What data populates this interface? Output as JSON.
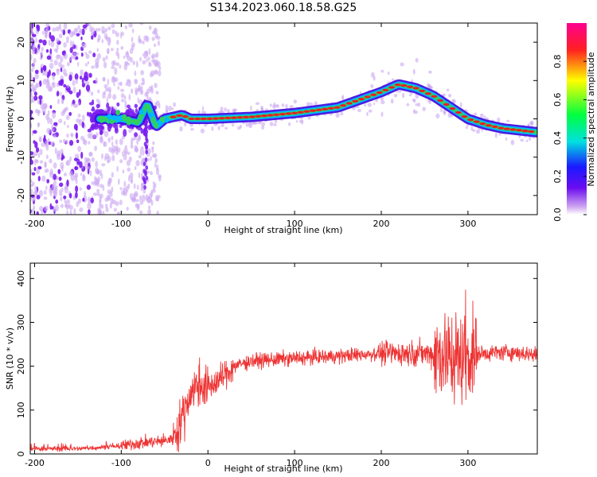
{
  "figure": {
    "title": "S134.2023.060.18.58.G25"
  },
  "chart_data": [
    {
      "type": "heatmap",
      "xlabel": "Height of straight line (km)",
      "ylabel": "Frequency (Hz)",
      "xlim": [
        -205,
        380
      ],
      "ylim": [
        -25,
        25
      ],
      "x_ticks": [
        "-200",
        "-100",
        "0",
        "100",
        "200",
        "300"
      ],
      "y_ticks": [
        "-20",
        "-10",
        "0",
        "10",
        "20"
      ],
      "colorbar": {
        "label": "Normalized spectral amplitude",
        "range": [
          0.0,
          1.0
        ],
        "ticks": [
          "0.0",
          "0.2",
          "0.4",
          "0.6",
          "0.8"
        ],
        "colormap": [
          "#ffffff",
          "#d0a8f0",
          "#6a0cf0",
          "#1a1aff",
          "#00e0e0",
          "#00ff40",
          "#ffff00",
          "#ff2020",
          "#ff0090"
        ]
      },
      "ridge": {
        "x": [
          -120,
          -100,
          -80,
          -70,
          -60,
          -50,
          -40,
          -30,
          -20,
          0,
          50,
          100,
          150,
          200,
          220,
          240,
          260,
          280,
          300,
          320,
          340,
          360,
          380
        ],
        "y": [
          0,
          0,
          -1,
          4,
          -2,
          0,
          0.5,
          1,
          0,
          0,
          0.5,
          1.5,
          3,
          7,
          9,
          8,
          6,
          3,
          0,
          -1.5,
          -2.5,
          -3,
          -3.5
        ]
      },
      "colors": {
        "ridge_core": "#e82020",
        "ridge_mid": "#30d060",
        "ridge_outer": "#00b8ff",
        "ridge_edge": "#4010e0",
        "noise": "#7a1cf0",
        "noise_faint": "#cba8f2"
      }
    },
    {
      "type": "line",
      "xlabel": "Height of straight line (km)",
      "ylabel": "SNR (10 * v/v)",
      "xlim": [
        -205,
        380
      ],
      "ylim": [
        0,
        435
      ],
      "x_ticks": [
        "-200",
        "-100",
        "0",
        "100",
        "200",
        "300"
      ],
      "y_ticks": [
        "0",
        "100",
        "200",
        "300",
        "400"
      ],
      "trend": {
        "x": [
          -205,
          -150,
          -100,
          -80,
          -50,
          -40,
          -30,
          -20,
          -10,
          0,
          10,
          20,
          30,
          50,
          100,
          150,
          200,
          250,
          280,
          290,
          300,
          320,
          350,
          380
        ],
        "y": [
          12,
          12,
          18,
          25,
          30,
          35,
          80,
          140,
          160,
          150,
          165,
          180,
          200,
          212,
          218,
          223,
          230,
          230,
          225,
          220,
          226,
          230,
          232,
          226
        ]
      },
      "line_color": "#ee3333"
    }
  ]
}
